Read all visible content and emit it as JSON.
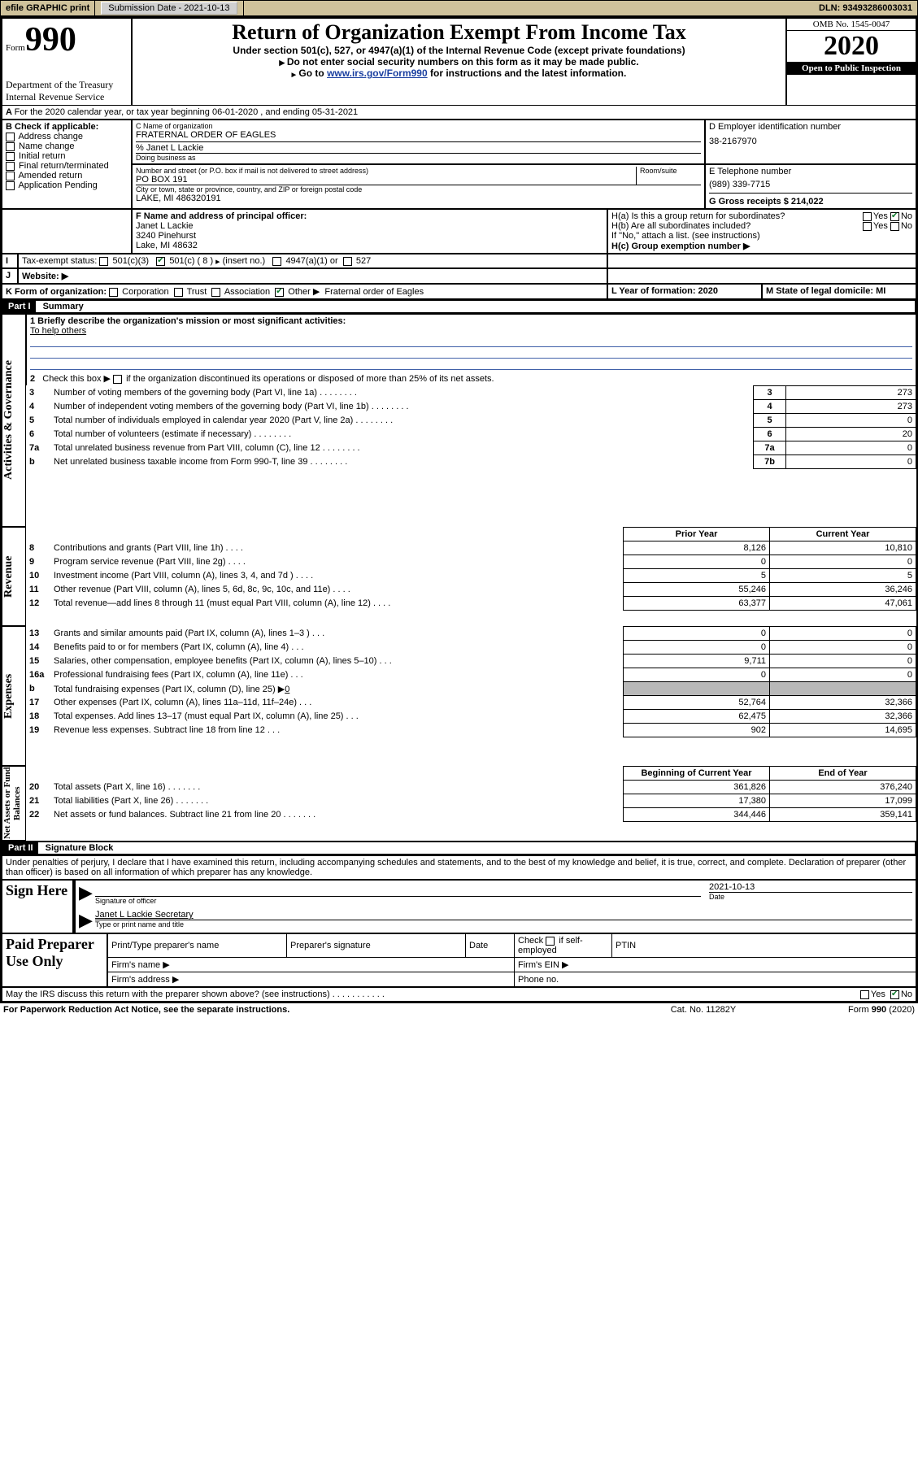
{
  "topbar": {
    "efile": "efile GRAPHIC print",
    "subdate_label": "Submission Date - 2021-10-13",
    "dln": "DLN: 93493286003031"
  },
  "header": {
    "form_word": "Form",
    "form_no": "990",
    "dept1": "Department of the Treasury",
    "dept2": "Internal Revenue Service",
    "title": "Return of Organization Exempt From Income Tax",
    "sub1": "Under section 501(c), 527, or 4947(a)(1) of the Internal Revenue Code (except private foundations)",
    "sub2": "Do not enter social security numbers on this form as it may be made public.",
    "sub3a": "Go to ",
    "sub3_link": "www.irs.gov/Form990",
    "sub3b": " for instructions and the latest information.",
    "omb": "OMB No. 1545-0047",
    "year": "2020",
    "inspect": "Open to Public Inspection"
  },
  "A_line": "For the 2020 calendar year, or tax year beginning 06-01-2020    , and ending 05-31-2021",
  "B": {
    "label": "B Check if applicable:",
    "items": [
      "Address change",
      "Name change",
      "Initial return",
      "Final return/terminated",
      "Amended return",
      "Application Pending"
    ]
  },
  "C": {
    "name_lbl": "C Name of organization",
    "name": "FRATERNAL ORDER OF EAGLES",
    "care_lbl": "% Janet L Lackie",
    "dba_lbl": "Doing business as",
    "street_lbl": "Number and street (or P.O. box if mail is not delivered to street address)",
    "room_lbl": "Room/suite",
    "street": "PO BOX 191",
    "city_lbl": "City or town, state or province, country, and ZIP or foreign postal code",
    "city": "LAKE, MI  486320191"
  },
  "D": {
    "lbl": "D Employer identification number",
    "val": "38-2167970"
  },
  "E": {
    "lbl": "E Telephone number",
    "val": "(989) 339-7715"
  },
  "G": {
    "lbl": "G Gross receipts $ 214,022"
  },
  "F": {
    "lbl": "F  Name and address of principal officer:",
    "name": "Janet L Lackie",
    "addr1": "3240 Pinehurst",
    "addr2": "Lake, MI  48632"
  },
  "H": {
    "a": "H(a)  Is this a group return for subordinates?",
    "b": "H(b)  Are all subordinates included?",
    "b_note": "If \"No,\" attach a list. (see instructions)",
    "c": "H(c)  Group exemption number ▶",
    "yes": "Yes",
    "no": "No"
  },
  "I": {
    "lbl": "Tax-exempt status:",
    "o1": "501(c)(3)",
    "o2a": "501(c) ( 8 ) ",
    "o2b": "(insert no.)",
    "o3": "4947(a)(1) or",
    "o4": "527"
  },
  "J": {
    "lbl": "Website: ▶"
  },
  "K": {
    "lbl": "K Form of organization:",
    "opts": [
      "Corporation",
      "Trust",
      "Association",
      "Other ▶"
    ],
    "other_text": "Fraternal order of Eagles"
  },
  "L": {
    "lbl": "L Year of formation: 2020"
  },
  "M": {
    "lbl": "M State of legal domicile: MI"
  },
  "partI": {
    "hdr": "Part I",
    "title": "Summary"
  },
  "side_labels": {
    "ag": "Activities & Governance",
    "rev": "Revenue",
    "exp": "Expenses",
    "na": "Net Assets or Fund Balances"
  },
  "line1": {
    "lbl": "1  Briefly describe the organization's mission or most significant activities:",
    "val": "To help others"
  },
  "line2": "2    Check this box ▶        if the organization discontinued its operations or disposed of more than 25% of its net assets.",
  "gov_rows": [
    {
      "n": "3",
      "t": "Number of voting members of the governing body (Part VI, line 1a)",
      "box": "3",
      "v": "273"
    },
    {
      "n": "4",
      "t": "Number of independent voting members of the governing body (Part VI, line 1b)",
      "box": "4",
      "v": "273"
    },
    {
      "n": "5",
      "t": "Total number of individuals employed in calendar year 2020 (Part V, line 2a)",
      "box": "5",
      "v": "0"
    },
    {
      "n": "6",
      "t": "Total number of volunteers (estimate if necessary)",
      "box": "6",
      "v": "20"
    },
    {
      "n": "7a",
      "t": "Total unrelated business revenue from Part VIII, column (C), line 12",
      "box": "7a",
      "v": "0"
    },
    {
      "n": "b",
      "t": "Net unrelated business taxable income from Form 990-T, line 39",
      "box": "7b",
      "v": "0"
    }
  ],
  "col_hdrs": {
    "prior": "Prior Year",
    "current": "Current Year"
  },
  "rev_rows": [
    {
      "n": "8",
      "t": "Contributions and grants (Part VIII, line 1h)",
      "p": "8,126",
      "c": "10,810"
    },
    {
      "n": "9",
      "t": "Program service revenue (Part VIII, line 2g)",
      "p": "0",
      "c": "0"
    },
    {
      "n": "10",
      "t": "Investment income (Part VIII, column (A), lines 3, 4, and 7d )",
      "p": "5",
      "c": "5"
    },
    {
      "n": "11",
      "t": "Other revenue (Part VIII, column (A), lines 5, 6d, 8c, 9c, 10c, and 11e)",
      "p": "55,246",
      "c": "36,246"
    },
    {
      "n": "12",
      "t": "Total revenue—add lines 8 through 11 (must equal Part VIII, column (A), line 12)",
      "p": "63,377",
      "c": "47,061"
    }
  ],
  "exp_rows": [
    {
      "n": "13",
      "t": "Grants and similar amounts paid (Part IX, column (A), lines 1–3 )",
      "p": "0",
      "c": "0"
    },
    {
      "n": "14",
      "t": "Benefits paid to or for members (Part IX, column (A), line 4)",
      "p": "0",
      "c": "0"
    },
    {
      "n": "15",
      "t": "Salaries, other compensation, employee benefits (Part IX, column (A), lines 5–10)",
      "p": "9,711",
      "c": "0"
    },
    {
      "n": "16a",
      "t": "Professional fundraising fees (Part IX, column (A), line 11e)",
      "p": "0",
      "c": "0"
    }
  ],
  "exp_16b": {
    "n": "b",
    "t": "Total fundraising expenses (Part IX, column (D), line 25) ▶",
    "v": "0"
  },
  "exp_rows2": [
    {
      "n": "17",
      "t": "Other expenses (Part IX, column (A), lines 11a–11d, 11f–24e)",
      "p": "52,764",
      "c": "32,366"
    },
    {
      "n": "18",
      "t": "Total expenses. Add lines 13–17 (must equal Part IX, column (A), line 25)",
      "p": "62,475",
      "c": "32,366"
    },
    {
      "n": "19",
      "t": "Revenue less expenses. Subtract line 18 from line 12",
      "p": "902",
      "c": "14,695"
    }
  ],
  "na_hdrs": {
    "b": "Beginning of Current Year",
    "e": "End of Year"
  },
  "na_rows": [
    {
      "n": "20",
      "t": "Total assets (Part X, line 16)",
      "p": "361,826",
      "c": "376,240"
    },
    {
      "n": "21",
      "t": "Total liabilities (Part X, line 26)",
      "p": "17,380",
      "c": "17,099"
    },
    {
      "n": "22",
      "t": "Net assets or fund balances. Subtract line 21 from line 20",
      "p": "344,446",
      "c": "359,141"
    }
  ],
  "partII": {
    "hdr": "Part II",
    "title": "Signature Block"
  },
  "perjury": "Under penalties of perjury, I declare that I have examined this return, including accompanying schedules and statements, and to the best of my knowledge and belief, it is true, correct, and complete. Declaration of preparer (other than officer) is based on all information of which preparer has any knowledge.",
  "sign": {
    "here": "Sign Here",
    "sig_lbl": "Signature of officer",
    "date_lbl": "Date",
    "date_val": "2021-10-13",
    "typed": "Janet L Lackie  Secretary",
    "typed_lbl": "Type or print name and title"
  },
  "paid": {
    "title": "Paid Preparer Use Only",
    "c1": "Print/Type preparer's name",
    "c2": "Preparer's signature",
    "c3": "Date",
    "c4a": "Check",
    "c4b": "if self-employed",
    "c5": "PTIN",
    "firm_name": "Firm's name    ▶",
    "firm_ein": "Firm's EIN ▶",
    "firm_addr": "Firm's address ▶",
    "phone": "Phone no."
  },
  "footer": {
    "discuss": "May the IRS discuss this return with the preparer shown above? (see instructions)",
    "paperwork": "For Paperwork Reduction Act Notice, see the separate instructions.",
    "cat": "Cat. No. 11282Y",
    "form": "Form 990 (2020)"
  }
}
